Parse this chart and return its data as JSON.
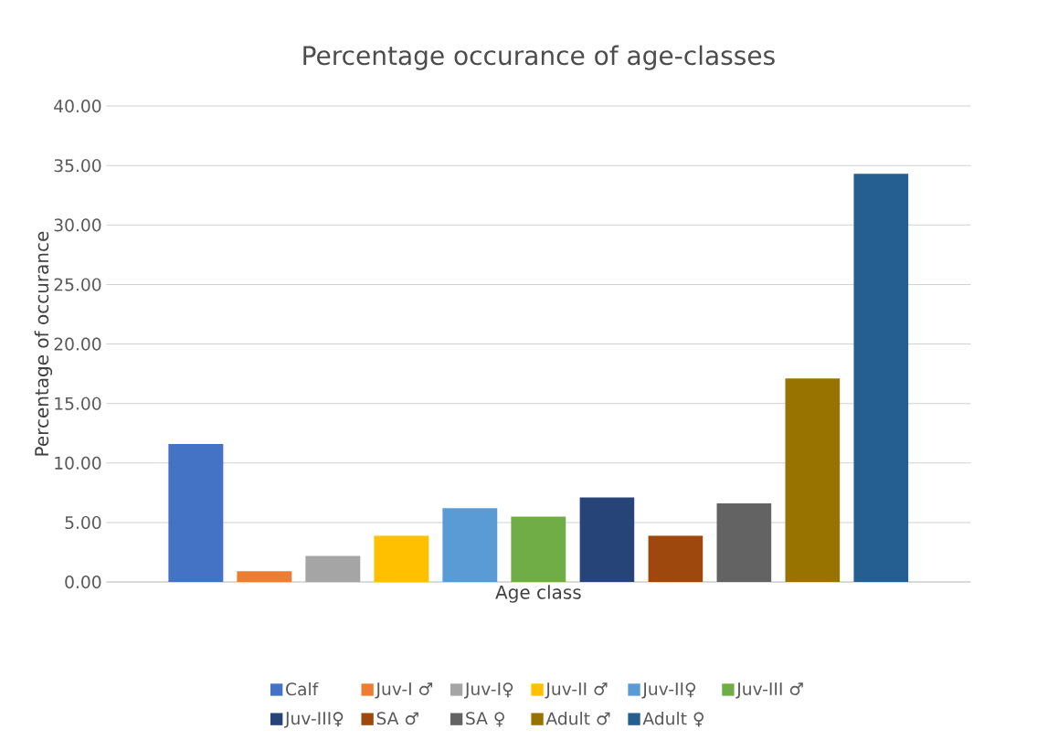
{
  "chart_data": {
    "type": "bar",
    "title": "Percentage occurance of age-classes",
    "xlabel": "Age class",
    "ylabel": "Percentage of occurance",
    "categories": [
      null
    ],
    "series": [
      {
        "name": "Calf",
        "color": "#4472c4",
        "values": [
          11.6
        ]
      },
      {
        "name": "Juv-I ♂",
        "color": "#ed7d31",
        "values": [
          0.9
        ]
      },
      {
        "name": "Juv-I♀",
        "color": "#a5a5a5",
        "values": [
          2.2
        ]
      },
      {
        "name": "Juv-II ♂",
        "color": "#ffc000",
        "values": [
          3.9
        ]
      },
      {
        "name": "Juv-II♀",
        "color": "#5b9bd5",
        "values": [
          6.2
        ]
      },
      {
        "name": "Juv-III ♂",
        "color": "#70ad47",
        "values": [
          5.5
        ]
      },
      {
        "name": "Juv-III♀",
        "color": "#264478",
        "values": [
          7.1
        ]
      },
      {
        "name": "SA ♂",
        "color": "#9e480e",
        "values": [
          3.9
        ]
      },
      {
        "name": "SA ♀",
        "color": "#636363",
        "values": [
          6.6
        ]
      },
      {
        "name": "Adult ♂",
        "color": "#997300",
        "values": [
          17.1
        ]
      },
      {
        "name": "Adult ♀",
        "color": "#255e91",
        "values": [
          34.3
        ]
      }
    ],
    "ylim": [
      0,
      40
    ],
    "yticks": [
      {
        "value": 0,
        "label": "0.00"
      },
      {
        "value": 5,
        "label": "5.00"
      },
      {
        "value": 10,
        "label": "10.00"
      },
      {
        "value": 15,
        "label": "15.00"
      },
      {
        "value": 20,
        "label": "20.00"
      },
      {
        "value": 25,
        "label": "25.00"
      },
      {
        "value": 30,
        "label": "30.00"
      },
      {
        "value": 35,
        "label": "35.00"
      },
      {
        "value": 40,
        "label": "40.00"
      }
    ],
    "grid": "y",
    "legend": "bottom"
  }
}
